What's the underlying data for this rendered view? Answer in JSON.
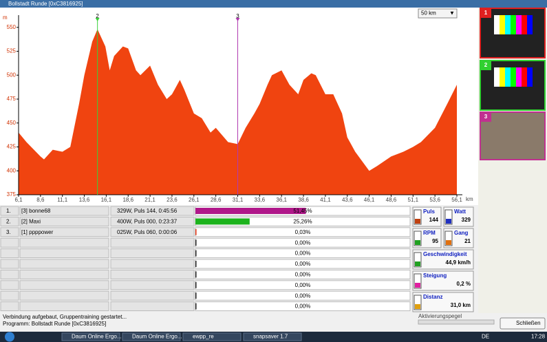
{
  "window": {
    "title": "Bollstadt Runde [0xC3816925]",
    "range_select": "50 km"
  },
  "profile": {
    "y_unit": "m",
    "x_unit": "km",
    "color": "#f04410",
    "xlim": [
      6.1,
      56.1
    ],
    "ylim": [
      375,
      557
    ],
    "yticks": [
      375,
      400,
      425,
      450,
      475,
      500,
      525,
      550
    ],
    "xticks": [
      {
        "value": 6.1,
        "label": "6,1"
      },
      {
        "value": 8.6,
        "label": "8,6"
      },
      {
        "value": 11.1,
        "label": "11,1"
      },
      {
        "value": 13.6,
        "label": "13,6"
      },
      {
        "value": 16.1,
        "label": "16,1"
      },
      {
        "value": 18.6,
        "label": "18,6"
      },
      {
        "value": 21.1,
        "label": "21,1"
      },
      {
        "value": 23.6,
        "label": "23,6"
      },
      {
        "value": 26.1,
        "label": "26,1"
      },
      {
        "value": 28.6,
        "label": "28,6"
      },
      {
        "value": 31.1,
        "label": "31,1"
      },
      {
        "value": 33.6,
        "label": "33,6"
      },
      {
        "value": 36.1,
        "label": "36,1"
      },
      {
        "value": 38.6,
        "label": "38,6"
      },
      {
        "value": 41.1,
        "label": "41,1"
      },
      {
        "value": 43.6,
        "label": "43,6"
      },
      {
        "value": 46.1,
        "label": "46,1"
      },
      {
        "value": 48.6,
        "label": "48,6"
      },
      {
        "value": 51.1,
        "label": "51,1"
      },
      {
        "value": 53.6,
        "label": "53,6"
      },
      {
        "value": 56.1,
        "label": "56,1"
      }
    ],
    "x": [
      6.1,
      7,
      8.6,
      9,
      10,
      11.1,
      12,
      13,
      13.6,
      14.5,
      15.1,
      16,
      16.5,
      17,
      18,
      18.6,
      19.5,
      20,
      21.1,
      22,
      23,
      23.6,
      24.5,
      25,
      26.1,
      27,
      28,
      28.6,
      30,
      31.1,
      32,
      33,
      33.6,
      34.5,
      35,
      36.1,
      37,
      38,
      38.6,
      39.5,
      40,
      41.1,
      42,
      43,
      43.6,
      44.5,
      46.1,
      47,
      48.6,
      50,
      51.1,
      52,
      53.6,
      55,
      56.1
    ],
    "values": [
      440,
      430,
      415,
      412,
      422,
      420,
      425,
      470,
      500,
      535,
      548,
      530,
      505,
      520,
      530,
      528,
      505,
      500,
      510,
      490,
      475,
      480,
      495,
      485,
      460,
      455,
      440,
      445,
      430,
      428,
      445,
      460,
      470,
      490,
      500,
      505,
      490,
      480,
      495,
      502,
      500,
      480,
      480,
      460,
      435,
      420,
      400,
      405,
      415,
      420,
      425,
      430,
      445,
      470,
      490
    ],
    "markers": [
      {
        "label": "2",
        "x": 15.1,
        "color": "#3bd13b"
      },
      {
        "label": "3",
        "x": 31.1,
        "color": "#b03ab0"
      }
    ]
  },
  "rows": [
    {
      "num": "1.",
      "name": "[3] bonne68",
      "info": "329W, Puls 144, 0:45:56",
      "share": {
        "value": 51.45,
        "label": "51,45%"
      },
      "color": "#b0178a"
    },
    {
      "num": "2.",
      "name": "[2] Maxi",
      "info": "400W, Puls 000, 0:23:37",
      "share": {
        "value": 25.26,
        "label": "25,26%"
      },
      "color": "#1db31d"
    },
    {
      "num": "3.",
      "name": "[1] ppppower",
      "info": "025W, Puls 060, 0:00:06",
      "share": {
        "value": 0.03,
        "label": "0,03%"
      },
      "color": "#e03010"
    },
    {
      "share": {
        "value": 0,
        "label": "0,00%"
      }
    },
    {
      "share": {
        "value": 0,
        "label": "0,00%"
      }
    },
    {
      "share": {
        "value": 0,
        "label": "0,00%"
      }
    },
    {
      "share": {
        "value": 0,
        "label": "0,00%"
      }
    },
    {
      "share": {
        "value": 0,
        "label": "0,00%"
      }
    },
    {
      "share": {
        "value": 0,
        "label": "0,00%"
      }
    },
    {
      "share": {
        "value": 0,
        "label": "0,00%"
      }
    }
  ],
  "stats": [
    {
      "label": "Puls",
      "value": "144"
    },
    {
      "label": "Watt",
      "value": "329"
    },
    {
      "label": "RPM",
      "value": "95"
    },
    {
      "label": "Gang",
      "value": "21"
    },
    {
      "label": "Geschwindigkeit",
      "value": "44,9 km/h"
    },
    {
      "label": "Steigung",
      "value": "0,2 %"
    },
    {
      "label": "Distanz",
      "value": "31,0 km"
    }
  ],
  "videos": [
    "1",
    "2",
    "3"
  ],
  "status": [
    "Verbindung aufgebaut, Gruppentraining gestartet...",
    "Programm: Bollstadt Runde [0xC3816925]"
  ],
  "activation_label": "Aktivierungspegel",
  "close_button": "Schließen",
  "taskbar": {
    "items": [
      "Daum Online Ergo...",
      "Daum Online Ergo...",
      "ewpp_re",
      "snapsaver 1.7"
    ],
    "lang": "DE",
    "clock": "17:28"
  }
}
